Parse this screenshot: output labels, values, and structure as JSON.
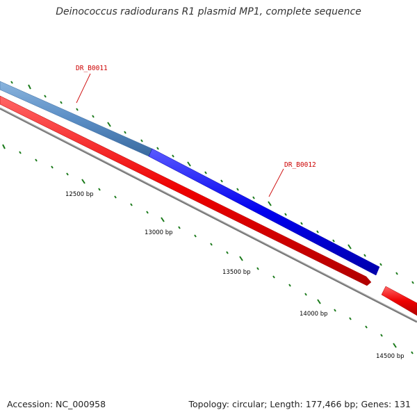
{
  "title": "Deinococcus radiodurans R1 plasmid MP1, complete sequence",
  "accession": "Accession: NC_000958",
  "summary": "Topology: circular; Length: 177,466 bp; Genes: 131",
  "gene_labels": [
    "DR_B0011",
    "DR_B0012"
  ],
  "bp_labels": [
    "12500 bp",
    "13000 bp",
    "13500 bp",
    "14000 bp",
    "14500 bp"
  ],
  "colors": {
    "forward_gene_selected": "#5b8ec5",
    "forward_gene": "#0000ee",
    "reverse_gene": "#ee0000",
    "backbone": "#777777",
    "tick": "#1a7a1a",
    "label": "#cc0000"
  }
}
